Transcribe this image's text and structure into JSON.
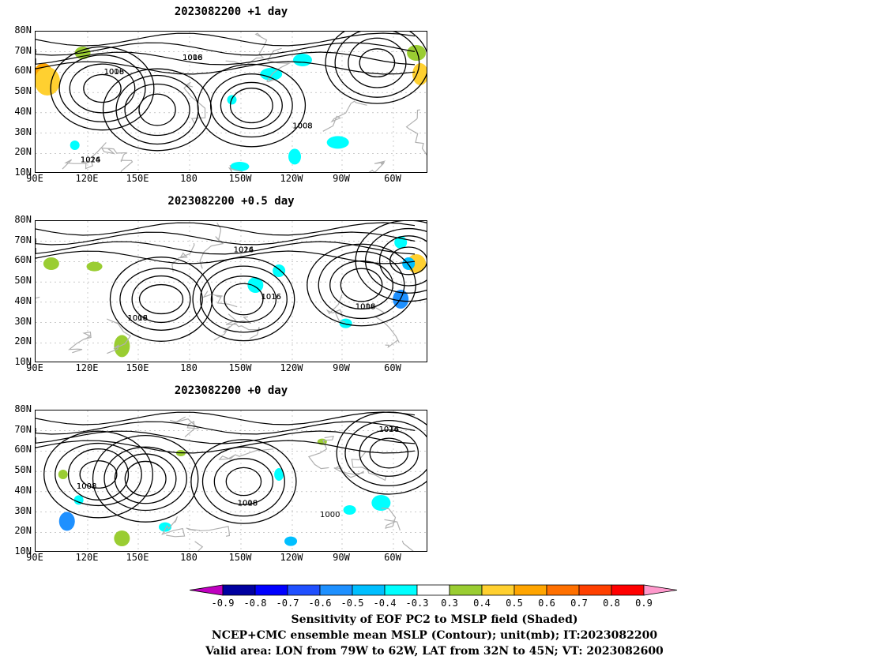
{
  "panels": [
    {
      "title": "2023082200  +1 day",
      "labels": [
        "1016",
        "1016",
        "1008",
        "1008",
        "1016",
        "1024",
        "1008",
        "1016",
        "1008"
      ]
    },
    {
      "title": "2023082200  +0.5 day",
      "labels": [
        "1016",
        "1008",
        "1016",
        "1016",
        "1024",
        "1016",
        "1008",
        "1016"
      ]
    },
    {
      "title": "2023082200  +0 day",
      "labels": [
        "1008",
        "1016",
        "1016",
        "1000",
        "1008",
        "1008",
        "1024"
      ]
    }
  ],
  "lat_labels": [
    "80N",
    "70N",
    "60N",
    "50N",
    "40N",
    "30N",
    "20N",
    "10N"
  ],
  "lon_labels": [
    "90E",
    "120E",
    "150E",
    "180",
    "150W",
    "120W",
    "90W",
    "60W"
  ],
  "colorbar": {
    "labels": [
      "-0.9",
      "-0.8",
      "-0.7",
      "-0.6",
      "-0.5",
      "-0.4",
      "-0.3",
      "0.3",
      "0.4",
      "0.5",
      "0.6",
      "0.7",
      "0.8",
      "0.9"
    ],
    "colors": [
      "#c000c0",
      "#0000a0",
      "#0000ff",
      "#2050ff",
      "#1e90ff",
      "#00bfff",
      "#00ffff",
      "#ffffff",
      "#9acd32",
      "#ffd030",
      "#ffa500",
      "#ff7000",
      "#ff4000",
      "#ff0000",
      "#ff99cc"
    ]
  },
  "captions": [
    "Sensitivity of EOF PC2 to MSLP field (Shaded)",
    "NCEP+CMC ensemble mean MSLP (Contour); unit(mb); IT:2023082200",
    "Valid area: LON from 79W to 62W, LAT from 32N to 45N; VT: 2023082600"
  ]
}
